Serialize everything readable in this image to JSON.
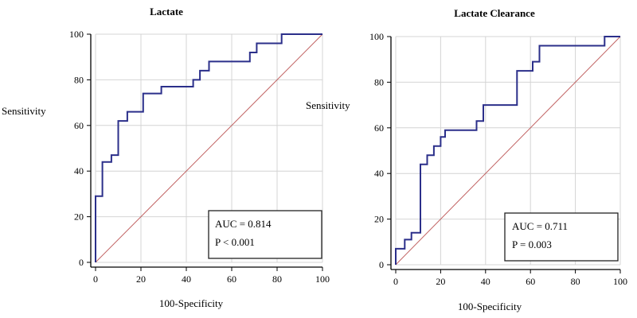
{
  "chart_data": [
    {
      "type": "line",
      "title": "Lactate",
      "xlabel": "100-Specificity",
      "ylabel": "Sensitivity",
      "xlim": [
        0,
        100
      ],
      "ylim": [
        0,
        100
      ],
      "xticks": [
        "0",
        "20",
        "40",
        "60",
        "80",
        "100"
      ],
      "yticks": [
        "0",
        "20",
        "40",
        "60",
        "80",
        "100"
      ],
      "grid": true,
      "series": [
        {
          "color": "#2b2f8a",
          "x": [
            0,
            0,
            3,
            3,
            7,
            7,
            10,
            10,
            14,
            14,
            21,
            21,
            29,
            29,
            43,
            43,
            46,
            46,
            50,
            50,
            57,
            57,
            61,
            61,
            64,
            64,
            68,
            68,
            71,
            71,
            82,
            82,
            86,
            86,
            100
          ],
          "y": [
            0,
            29,
            29,
            44,
            44,
            47,
            47,
            62,
            62,
            66,
            66,
            74,
            74,
            77,
            77,
            80,
            80,
            84,
            84,
            88,
            88,
            88,
            88,
            88,
            88,
            88,
            88,
            92,
            92,
            96,
            96,
            100,
            100,
            100,
            100
          ]
        },
        {
          "color": "#c06060",
          "x": [
            0,
            100
          ],
          "y": [
            0,
            100
          ]
        }
      ],
      "annotations": [
        "AUC = 0.814",
        "P < 0.001"
      ]
    },
    {
      "type": "line",
      "title": "Lactate  Clearance",
      "xlabel": "100-Specificity",
      "ylabel": "Sensitivity",
      "xlim": [
        0,
        100
      ],
      "ylim": [
        0,
        100
      ],
      "xticks": [
        "0",
        "20",
        "40",
        "60",
        "80",
        "100"
      ],
      "yticks": [
        "0",
        "20",
        "40",
        "60",
        "80",
        "100"
      ],
      "grid": true,
      "series": [
        {
          "color": "#2b2f8a",
          "x": [
            0,
            0,
            4,
            4,
            7,
            7,
            10,
            10,
            11,
            11,
            14,
            14,
            17,
            17,
            20,
            20,
            22,
            22,
            36,
            36,
            39,
            39,
            54,
            54,
            61,
            61,
            64,
            64,
            93,
            93,
            100
          ],
          "y": [
            0,
            7,
            7,
            11,
            11,
            14,
            14,
            14,
            14,
            44,
            44,
            48,
            48,
            52,
            52,
            56,
            56,
            59,
            59,
            63,
            63,
            70,
            70,
            85,
            85,
            89,
            89,
            96,
            96,
            100,
            100
          ]
        },
        {
          "color": "#c06060",
          "x": [
            0,
            100
          ],
          "y": [
            0,
            100
          ]
        }
      ],
      "annotations": [
        "AUC = 0.711",
        "P = 0.003"
      ]
    }
  ]
}
